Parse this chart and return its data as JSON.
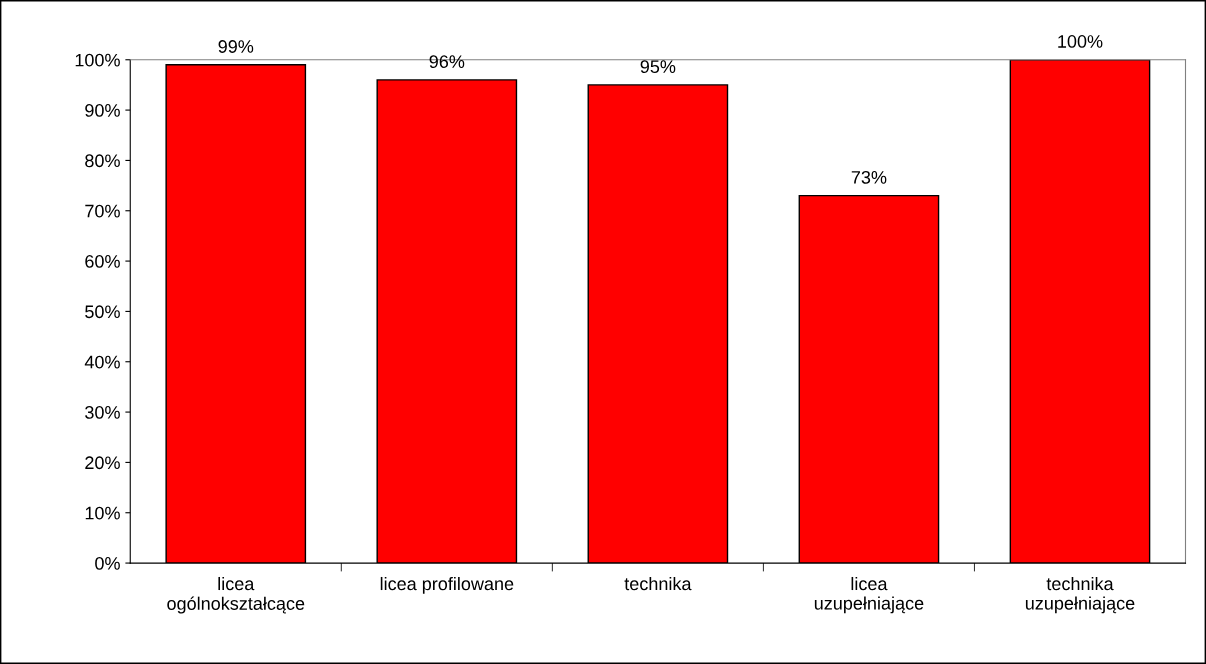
{
  "chart_data": {
    "type": "bar",
    "categories": [
      "licea\nogólnokształcące",
      "licea profilowane",
      "technika",
      "licea\nuzupełniające",
      "technika\nuzupełniające"
    ],
    "values": [
      99,
      96,
      95,
      73,
      100
    ],
    "value_labels": [
      "99%",
      "96%",
      "95%",
      "73%",
      "100%"
    ],
    "color": "#ff0000",
    "ylim": [
      0,
      100
    ],
    "yticks": [
      {
        "value": 0,
        "label": "0%"
      },
      {
        "value": 10,
        "label": "10%"
      },
      {
        "value": 20,
        "label": "20%"
      },
      {
        "value": 30,
        "label": "30%"
      },
      {
        "value": 40,
        "label": "40%"
      },
      {
        "value": 50,
        "label": "50%"
      },
      {
        "value": 60,
        "label": "60%"
      },
      {
        "value": 70,
        "label": "70%"
      },
      {
        "value": 80,
        "label": "80%"
      },
      {
        "value": 90,
        "label": "90%"
      },
      {
        "value": 100,
        "label": "100%"
      }
    ],
    "grid": false,
    "legend": false
  }
}
